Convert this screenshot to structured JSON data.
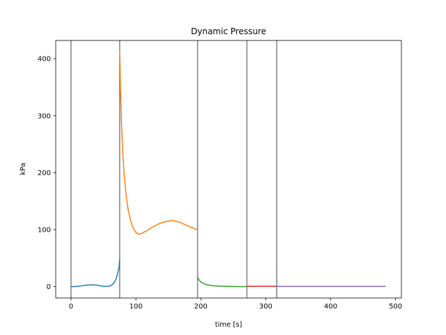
{
  "chart_data": {
    "type": "line",
    "title": "Dynamic Pressure",
    "xlabel": "time [s]",
    "ylabel": "kPa",
    "xlim": [
      -23.5,
      509
    ],
    "ylim": [
      -20,
      432
    ],
    "xticks": [
      0,
      100,
      200,
      300,
      400,
      500
    ],
    "yticks": [
      0,
      100,
      200,
      300,
      400
    ],
    "grid": false,
    "vlines": {
      "x": [
        0,
        75,
        195,
        271,
        317
      ],
      "color": "#7f7f7f"
    },
    "series": [
      {
        "color": "#1f77b4",
        "points": [
          [
            0,
            0
          ],
          [
            5,
            0.1
          ],
          [
            10,
            0.5
          ],
          [
            15,
            1.2
          ],
          [
            20,
            2
          ],
          [
            25,
            2.6
          ],
          [
            30,
            3
          ],
          [
            35,
            3
          ],
          [
            40,
            2.5
          ],
          [
            45,
            1.5
          ],
          [
            50,
            0.6
          ],
          [
            55,
            0.3
          ],
          [
            58,
            0.7
          ],
          [
            62,
            2
          ],
          [
            65,
            5
          ],
          [
            68,
            10
          ],
          [
            70,
            15
          ],
          [
            72,
            24
          ],
          [
            74,
            35
          ],
          [
            75,
            48
          ]
        ]
      },
      {
        "color": "#ff7f0e",
        "points": [
          [
            75,
            414
          ],
          [
            76,
            360
          ],
          [
            77,
            320
          ],
          [
            78,
            280
          ],
          [
            80,
            230
          ],
          [
            82,
            195
          ],
          [
            85,
            160
          ],
          [
            88,
            135
          ],
          [
            92,
            115
          ],
          [
            96,
            102
          ],
          [
            100,
            95
          ],
          [
            104,
            92
          ],
          [
            108,
            93
          ],
          [
            115,
            97
          ],
          [
            125,
            104
          ],
          [
            135,
            110
          ],
          [
            145,
            114
          ],
          [
            155,
            116
          ],
          [
            165,
            114
          ],
          [
            175,
            109
          ],
          [
            185,
            104
          ],
          [
            195,
            100
          ]
        ]
      },
      {
        "color": "#2ca02c",
        "points": [
          [
            195,
            17
          ],
          [
            197,
            12
          ],
          [
            200,
            8
          ],
          [
            205,
            5
          ],
          [
            210,
            3
          ],
          [
            220,
            1.5
          ],
          [
            230,
            0.8
          ],
          [
            245,
            0.3
          ],
          [
            260,
            0.1
          ],
          [
            271,
            0
          ]
        ]
      },
      {
        "color": "#d62728",
        "points": [
          [
            271,
            0.5
          ],
          [
            317,
            0.5
          ]
        ]
      },
      {
        "color": "#9467bd",
        "points": [
          [
            317,
            0.3
          ],
          [
            485,
            0.3
          ]
        ]
      }
    ]
  }
}
